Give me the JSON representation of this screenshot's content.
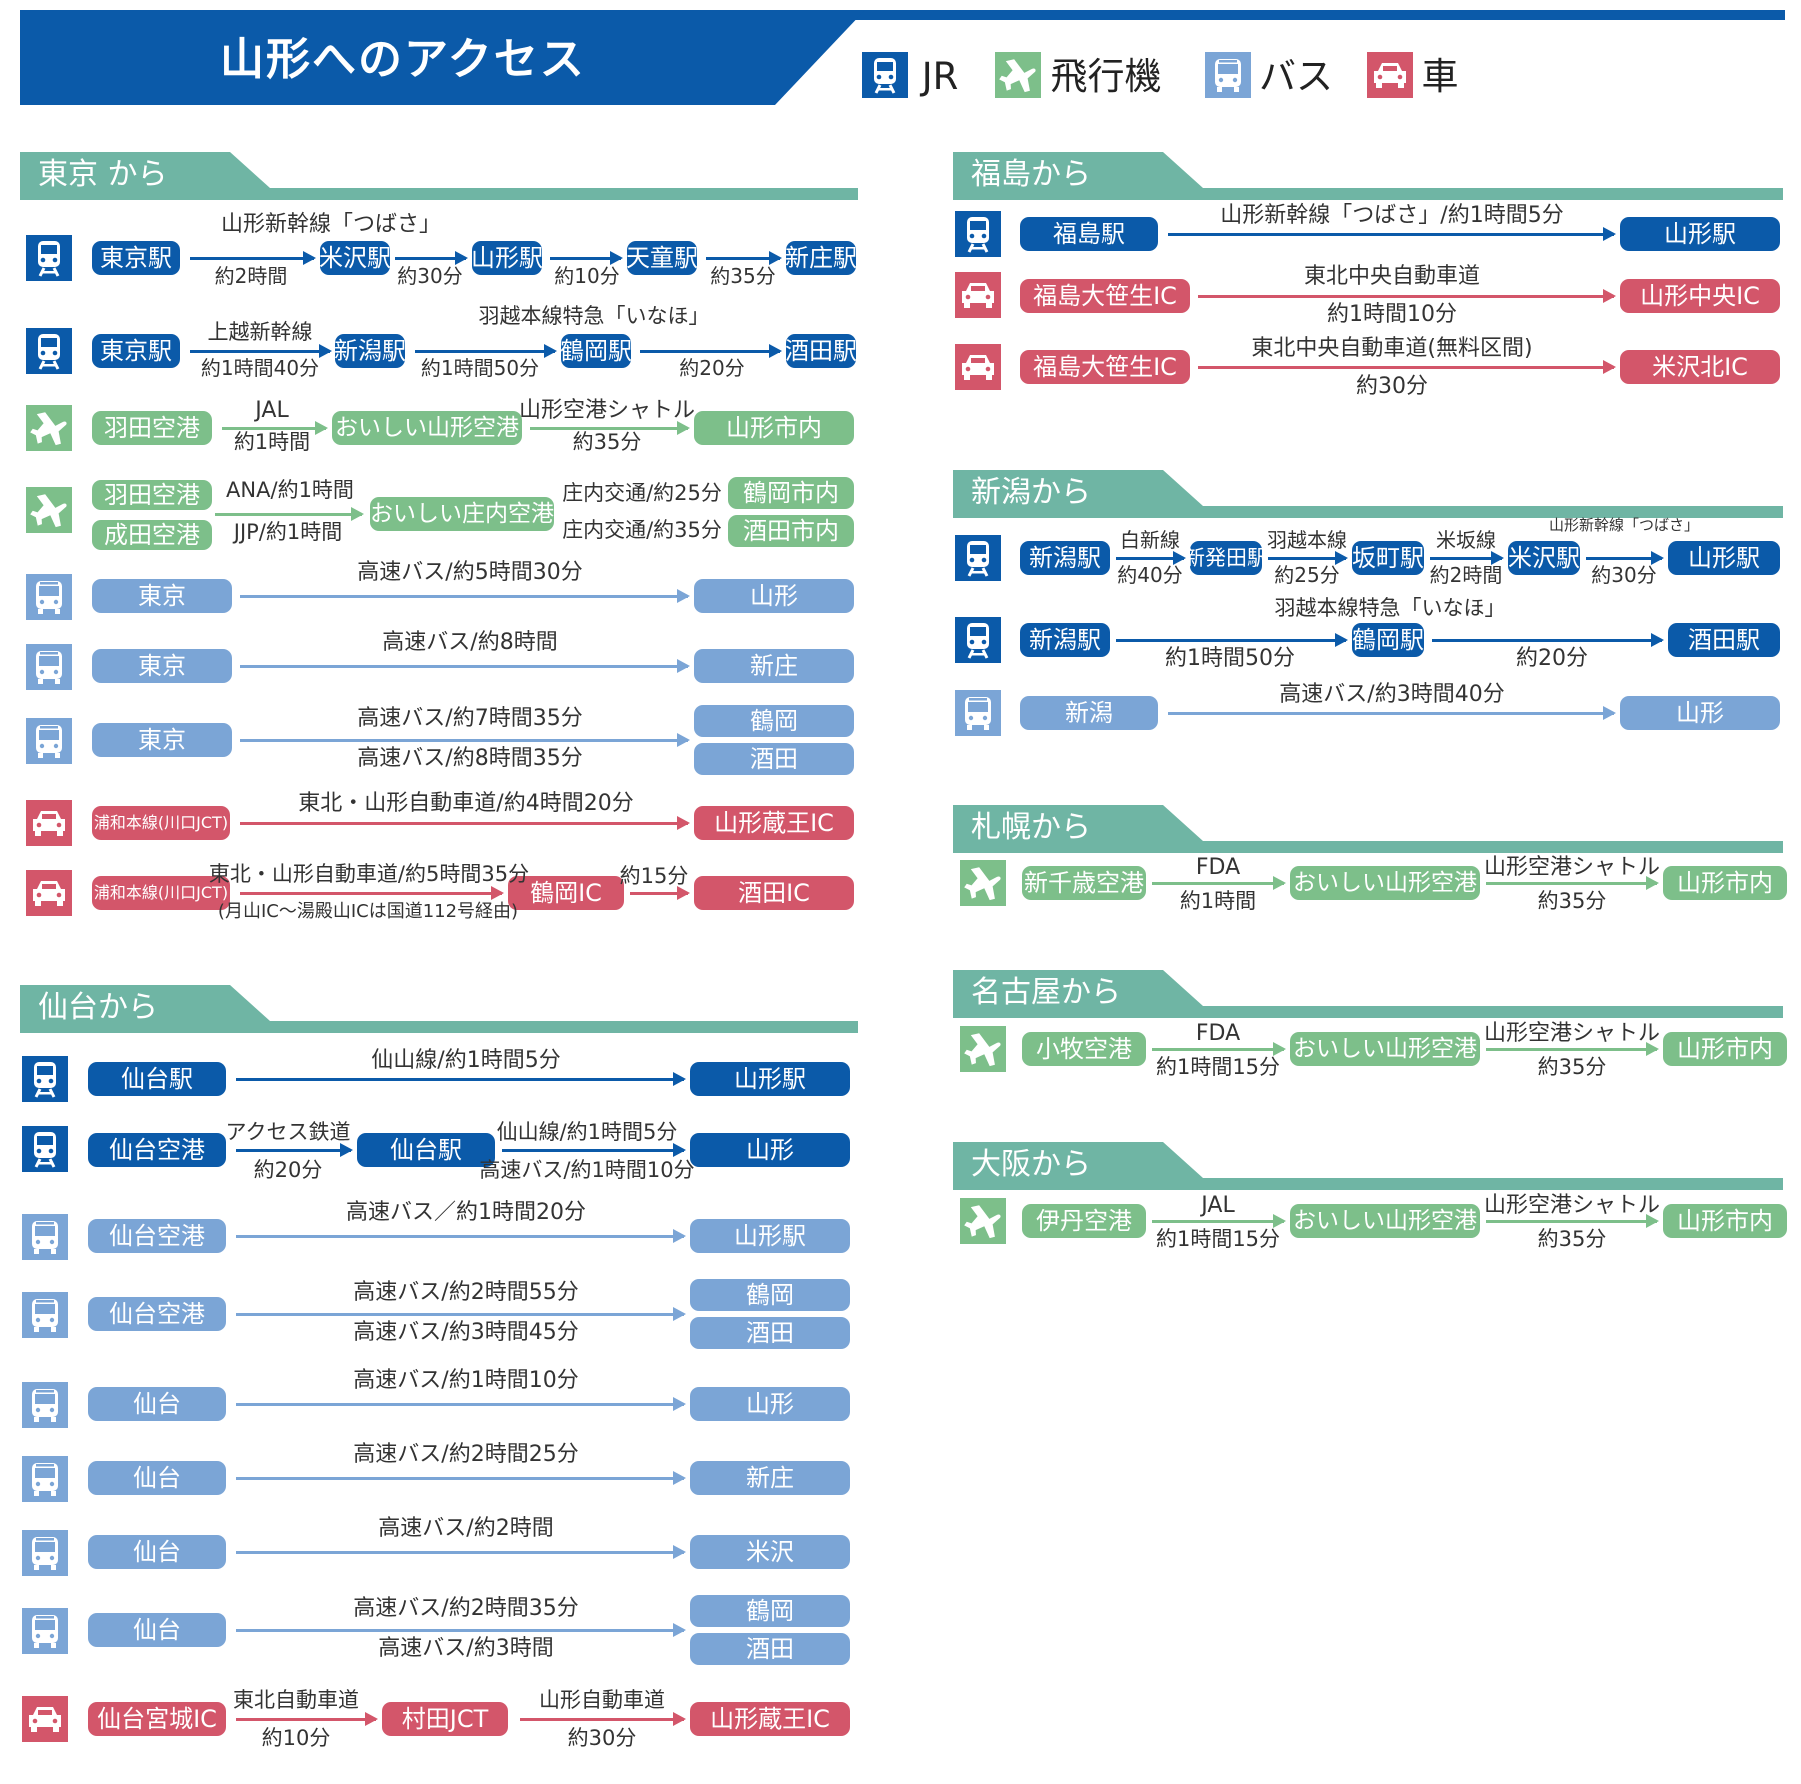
{
  "title": "山形へのアクセス",
  "legend": [
    {
      "kind": "jr",
      "label": "JR"
    },
    {
      "kind": "plane",
      "label": "飛行機"
    },
    {
      "kind": "bus",
      "label": "バス"
    },
    {
      "kind": "car",
      "label": "車"
    }
  ],
  "colors": {
    "jr": "#0b5aa9",
    "plane": "#7dbf8a",
    "bus": "#7ba5d6",
    "car": "#d3566a",
    "section": "#6fb5a4",
    "title": "#0b5aa9"
  },
  "icons": {
    "jr": "train-icon",
    "plane": "airplane-icon",
    "bus": "bus-icon",
    "car": "car-icon"
  },
  "sections": [
    {
      "key": "tokyo",
      "title": "東京 から",
      "routes": [
        {
          "mode": "jr",
          "nodes": [
            "東京駅",
            "米沢駅",
            "山形駅",
            "天童駅",
            "新庄駅"
          ],
          "segments": [
            {
              "above": "山形新幹線「つばさ」",
              "below": "約2時間"
            },
            {
              "above": "",
              "below": "約30分"
            },
            {
              "above": "",
              "below": "約10分"
            },
            {
              "above": "",
              "below": "約35分"
            }
          ]
        },
        {
          "mode": "jr",
          "nodes": [
            "東京駅",
            "新潟駅",
            "鶴岡駅",
            "酒田駅"
          ],
          "segments": [
            {
              "above": "上越新幹線",
              "below": "約1時間40分"
            },
            {
              "above": "羽越本線特急「いなほ」",
              "below": "約1時間50分"
            },
            {
              "above": "",
              "below": "約20分"
            }
          ]
        },
        {
          "mode": "plane",
          "nodes": [
            "羽田空港",
            "おいしい山形空港",
            "山形市内"
          ],
          "segments": [
            {
              "above": "JAL",
              "below": "約1時間"
            },
            {
              "above": "山形空港シャトル",
              "below": "約35分"
            }
          ]
        },
        {
          "mode": "plane",
          "origins": [
            "羽田空港",
            "成田空港"
          ],
          "flights": [
            "ANA/約1時間",
            "JJP/約1時間"
          ],
          "hub": "おいしい庄内空港",
          "dests": [
            {
              "label": "庄内交通/約25分",
              "dest": "鶴岡市内"
            },
            {
              "label": "庄内交通/約35分",
              "dest": "酒田市内"
            }
          ]
        },
        {
          "mode": "bus",
          "from": "東京",
          "dests": [
            {
              "label": "高速バス/約5時間30分",
              "dest": "山形"
            }
          ]
        },
        {
          "mode": "bus",
          "from": "東京",
          "dests": [
            {
              "label": "高速バス/約8時間",
              "dest": "新庄"
            }
          ]
        },
        {
          "mode": "bus",
          "from": "東京",
          "dests": [
            {
              "label": "高速バス/約7時間35分",
              "dest": "鶴岡"
            },
            {
              "label": "高速バス/約8時間35分",
              "dest": "酒田"
            }
          ]
        },
        {
          "mode": "car",
          "nodes": [
            "浦和本線(川口JCT)",
            "山形蔵王IC"
          ],
          "segments": [
            {
              "above": "東北・山形自動車道/約4時間20分",
              "below": ""
            }
          ]
        },
        {
          "mode": "car",
          "nodes": [
            "浦和本線(川口JCT)",
            "鶴岡IC",
            "酒田IC"
          ],
          "segments": [
            {
              "above": "東北・山形自動車道/約5時間35分",
              "below": "(月山IC～湯殿山ICは国道112号経由)"
            },
            {
              "above": "約15分",
              "below": ""
            }
          ]
        }
      ]
    },
    {
      "key": "sendai",
      "title": "仙台から",
      "routes": [
        {
          "mode": "jr",
          "nodes": [
            "仙台駅",
            "山形駅"
          ],
          "segments": [
            {
              "above": "仙山線/約1時間5分",
              "below": ""
            }
          ]
        },
        {
          "mode": "jr",
          "nodes": [
            "仙台空港",
            "仙台駅",
            "山形"
          ],
          "segments": [
            {
              "above": "アクセス鉄道",
              "below": "約20分"
            },
            {
              "above": "仙山線/約1時間5分",
              "below": "高速バス/約1時間10分"
            }
          ]
        },
        {
          "mode": "bus",
          "from": "仙台空港",
          "dests": [
            {
              "label": "高速バス／約1時間20分",
              "dest": "山形駅"
            }
          ]
        },
        {
          "mode": "bus",
          "from": "仙台空港",
          "dests": [
            {
              "label": "高速バス/約2時間55分",
              "dest": "鶴岡"
            },
            {
              "label": "高速バス/約3時間45分",
              "dest": "酒田"
            }
          ]
        },
        {
          "mode": "bus",
          "from": "仙台",
          "dests": [
            {
              "label": "高速バス/約1時間10分",
              "dest": "山形"
            }
          ]
        },
        {
          "mode": "bus",
          "from": "仙台",
          "dests": [
            {
              "label": "高速バス/約2時間25分",
              "dest": "新庄"
            }
          ]
        },
        {
          "mode": "bus",
          "from": "仙台",
          "dests": [
            {
              "label": "高速バス/約2時間",
              "dest": "米沢"
            }
          ]
        },
        {
          "mode": "bus",
          "from": "仙台",
          "dests": [
            {
              "label": "高速バス/約2時間35分",
              "dest": "鶴岡"
            },
            {
              "label": "高速バス/約3時間",
              "dest": "酒田"
            }
          ]
        },
        {
          "mode": "car",
          "nodes": [
            "仙台宮城IC",
            "村田JCT",
            "山形蔵王IC"
          ],
          "segments": [
            {
              "above": "東北自動車道",
              "below": "約10分"
            },
            {
              "above": "山形自動車道",
              "below": "約30分"
            }
          ]
        }
      ]
    },
    {
      "key": "fukushima",
      "title": "福島から",
      "routes": [
        {
          "mode": "jr",
          "nodes": [
            "福島駅",
            "山形駅"
          ],
          "segments": [
            {
              "above": "山形新幹線「つばさ」/約1時間5分",
              "below": ""
            }
          ]
        },
        {
          "mode": "car",
          "nodes": [
            "福島大笹生IC",
            "山形中央IC"
          ],
          "segments": [
            {
              "above": "東北中央自動車道",
              "below": "約1時間10分"
            }
          ]
        },
        {
          "mode": "car",
          "nodes": [
            "福島大笹生IC",
            "米沢北IC"
          ],
          "segments": [
            {
              "above": "東北中央自動車道(無料区間)",
              "below": "約30分"
            }
          ]
        }
      ]
    },
    {
      "key": "niigata",
      "title": "新潟から",
      "routes": [
        {
          "mode": "jr",
          "nodes": [
            "新潟駅",
            "新発田駅",
            "坂町駅",
            "米沢駅",
            "山形駅"
          ],
          "segments": [
            {
              "above": "白新線",
              "below": "約40分"
            },
            {
              "above": "羽越本線",
              "below": "約25分"
            },
            {
              "above": "米坂線",
              "below": "約2時間"
            },
            {
              "above": "山形新幹線「つばさ」",
              "below": "約30分"
            }
          ]
        },
        {
          "mode": "jr",
          "nodes": [
            "新潟駅",
            "鶴岡駅",
            "酒田駅"
          ],
          "segments": [
            {
              "above": "羽越本線特急「いなほ」",
              "below": "約1時間50分"
            },
            {
              "above": "",
              "below": "約20分"
            }
          ]
        },
        {
          "mode": "bus",
          "from": "新潟",
          "dests": [
            {
              "label": "高速バス/約3時間40分",
              "dest": "山形"
            }
          ]
        }
      ]
    },
    {
      "key": "sapporo",
      "title": "札幌から",
      "routes": [
        {
          "mode": "plane",
          "nodes": [
            "新千歳空港",
            "おいしい山形空港",
            "山形市内"
          ],
          "segments": [
            {
              "above": "FDA",
              "below": "約1時間"
            },
            {
              "above": "山形空港シャトル",
              "below": "約35分"
            }
          ]
        }
      ]
    },
    {
      "key": "nagoya",
      "title": "名古屋から",
      "routes": [
        {
          "mode": "plane",
          "nodes": [
            "小牧空港",
            "おいしい山形空港",
            "山形市内"
          ],
          "segments": [
            {
              "above": "FDA",
              "below": "約1時間15分"
            },
            {
              "above": "山形空港シャトル",
              "below": "約35分"
            }
          ]
        }
      ]
    },
    {
      "key": "osaka",
      "title": "大阪から",
      "routes": [
        {
          "mode": "plane",
          "nodes": [
            "伊丹空港",
            "おいしい山形空港",
            "山形市内"
          ],
          "segments": [
            {
              "above": "JAL",
              "below": "約1時間15分"
            },
            {
              "above": "山形空港シャトル",
              "below": "約35分"
            }
          ]
        }
      ]
    }
  ]
}
